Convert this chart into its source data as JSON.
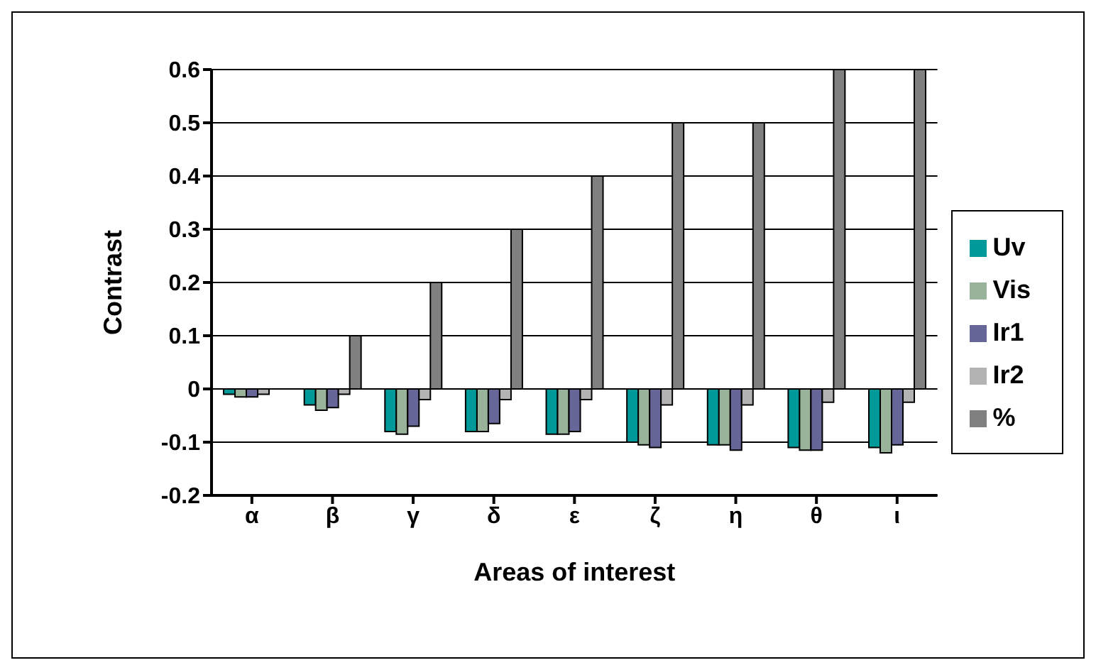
{
  "chart_data": {
    "type": "bar",
    "xlabel": "Areas of interest",
    "ylabel": "Contrast",
    "categories": [
      "α",
      "β",
      "γ",
      "δ",
      "ε",
      "ζ",
      "η",
      "θ",
      "ι"
    ],
    "series": [
      {
        "name": "Uv",
        "color": "#009999",
        "values": [
          -0.01,
          -0.03,
          -0.08,
          -0.08,
          -0.085,
          -0.1,
          -0.105,
          -0.11,
          -0.11
        ]
      },
      {
        "name": "Vis",
        "color": "#99b39a",
        "values": [
          -0.015,
          -0.04,
          -0.085,
          -0.08,
          -0.085,
          -0.105,
          -0.105,
          -0.115,
          -0.12
        ]
      },
      {
        "name": "Ir1",
        "color": "#666699",
        "values": [
          -0.015,
          -0.035,
          -0.07,
          -0.065,
          -0.08,
          -0.11,
          -0.115,
          -0.115,
          -0.105
        ]
      },
      {
        "name": "Ir2",
        "color": "#b3b3b3",
        "values": [
          -0.01,
          -0.01,
          -0.02,
          -0.02,
          -0.02,
          -0.03,
          -0.03,
          -0.025,
          -0.025
        ]
      },
      {
        "name": "%",
        "color": "#808080",
        "values": [
          0,
          0.1,
          0.2,
          0.3,
          0.4,
          0.5,
          0.5,
          0.6,
          0.6
        ]
      }
    ],
    "ylim": [
      -0.2,
      0.6
    ],
    "yticks": [
      -0.2,
      -0.1,
      0,
      0.1,
      0.2,
      0.3,
      0.4,
      0.5,
      0.6
    ],
    "grid": "y",
    "legend": "right"
  }
}
